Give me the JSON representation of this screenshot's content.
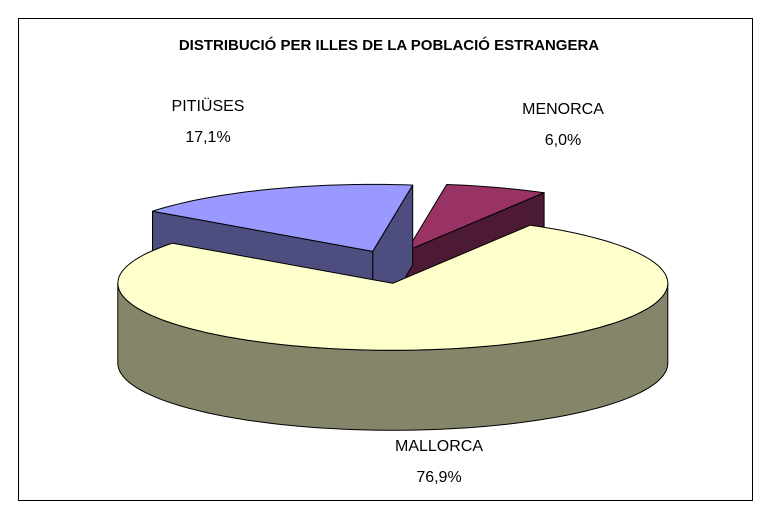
{
  "chart_data": {
    "type": "pie3d",
    "title": "DISTRIBUCIÓ PER ILLES DE LA POBLACIÓ ESTRANGERA",
    "categories": [
      "MALLORCA",
      "MENORCA",
      "PITIÜSES"
    ],
    "values": [
      76.9,
      6.0,
      17.1
    ],
    "value_labels": [
      "76,9%",
      "6,0%",
      "17,1%"
    ],
    "colors": [
      "#ffffcc",
      "#993366",
      "#9999ff"
    ]
  }
}
